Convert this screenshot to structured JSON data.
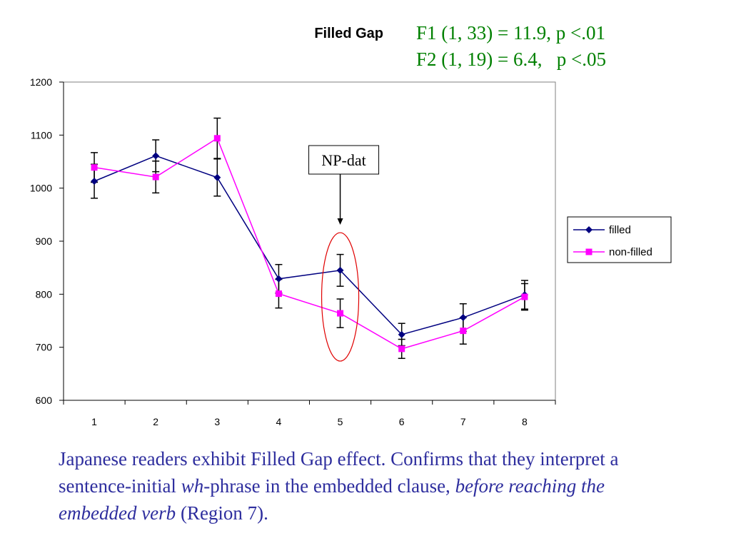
{
  "chart_data": {
    "type": "line",
    "title": "Filled Gap",
    "xlabel": "",
    "ylabel": "",
    "categories": [
      "1",
      "2",
      "3",
      "4",
      "5",
      "6",
      "7",
      "8"
    ],
    "ylim": [
      600,
      1200
    ],
    "yticks": [
      600,
      700,
      800,
      900,
      1000,
      1100,
      1200
    ],
    "grid": false,
    "legend_position": "right",
    "series": [
      {
        "name": "filled",
        "color": "#000080",
        "marker": "diamond",
        "values": [
          1013,
          1061,
          1020,
          829,
          845,
          724,
          756,
          799
        ],
        "errors": [
          32,
          30,
          35,
          27,
          30,
          21,
          26,
          27
        ]
      },
      {
        "name": "non-filled",
        "color": "#ff00ff",
        "marker": "square",
        "values": [
          1039,
          1021,
          1094,
          801,
          764,
          697,
          731,
          795
        ],
        "errors": [
          28,
          30,
          38,
          27,
          27,
          18,
          25,
          25
        ]
      }
    ],
    "annotation": {
      "label": "NP-dat",
      "category": "5"
    }
  },
  "stats": {
    "line1": "F1 (1, 33) = 11.9, p <.01",
    "line2": "F2 (1, 19) = 6.4,   p <.05"
  },
  "caption": {
    "part1": "Japanese readers exhibit Filled Gap effect. Confirms that they interpret a sentence-initial ",
    "wh": "wh",
    "part2": "-phrase in the embedded clause, ",
    "italic": "before reaching the embedded verb",
    "part3": " (Region 7)."
  }
}
